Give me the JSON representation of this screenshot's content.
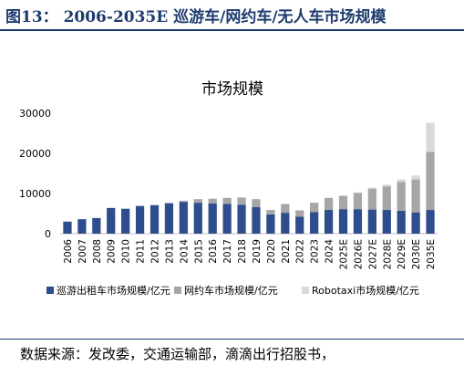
{
  "figure": {
    "title": "图13：  2006-2035E 巡游车/网约车/无人车市场规模",
    "source": "数据来源：发改委，交通运输部，滴滴出行招股书，"
  },
  "colors": {
    "title": "#1f3b6e",
    "series": [
      "#2e4d8c",
      "#a6a6a6",
      "#d9d9d9"
    ]
  },
  "chart_data": {
    "type": "bar",
    "stacked": true,
    "title": "市场规模",
    "categories": [
      "2006",
      "2007",
      "2008",
      "2009",
      "2010",
      "2011",
      "2012",
      "2013",
      "2014",
      "2015",
      "2016",
      "2017",
      "2018",
      "2019",
      "2020",
      "2021",
      "2022",
      "2023",
      "2024",
      "2025E",
      "2026E",
      "2027E",
      "2028E",
      "2029E",
      "2030E",
      "2035E"
    ],
    "series": [
      {
        "name": "巡游出租车市场规模/亿元",
        "values": [
          3000,
          3600,
          3900,
          6400,
          6200,
          6900,
          7100,
          7600,
          7900,
          7700,
          7500,
          7400,
          7200,
          6600,
          4800,
          5200,
          4200,
          5400,
          5900,
          6100,
          6100,
          6000,
          5900,
          5700,
          5300,
          5900
        ]
      },
      {
        "name": "网约车市场规模/亿元",
        "values": [
          0,
          0,
          0,
          0,
          0,
          0,
          0,
          0,
          300,
          900,
          1200,
          1500,
          1800,
          2000,
          1100,
          2200,
          1600,
          2300,
          3000,
          3300,
          4000,
          5200,
          5900,
          7200,
          8200,
          14500
        ]
      },
      {
        "name": "Robotaxi市场规模/亿元",
        "values": [
          0,
          0,
          0,
          0,
          0,
          0,
          0,
          0,
          0,
          0,
          0,
          0,
          0,
          0,
          0,
          0,
          0,
          0,
          0,
          100,
          200,
          300,
          400,
          600,
          1000,
          7200
        ]
      }
    ],
    "ylim": [
      0,
      30000
    ],
    "yticks": [
      0,
      10000,
      20000,
      30000
    ],
    "legend_position": "bottom"
  }
}
